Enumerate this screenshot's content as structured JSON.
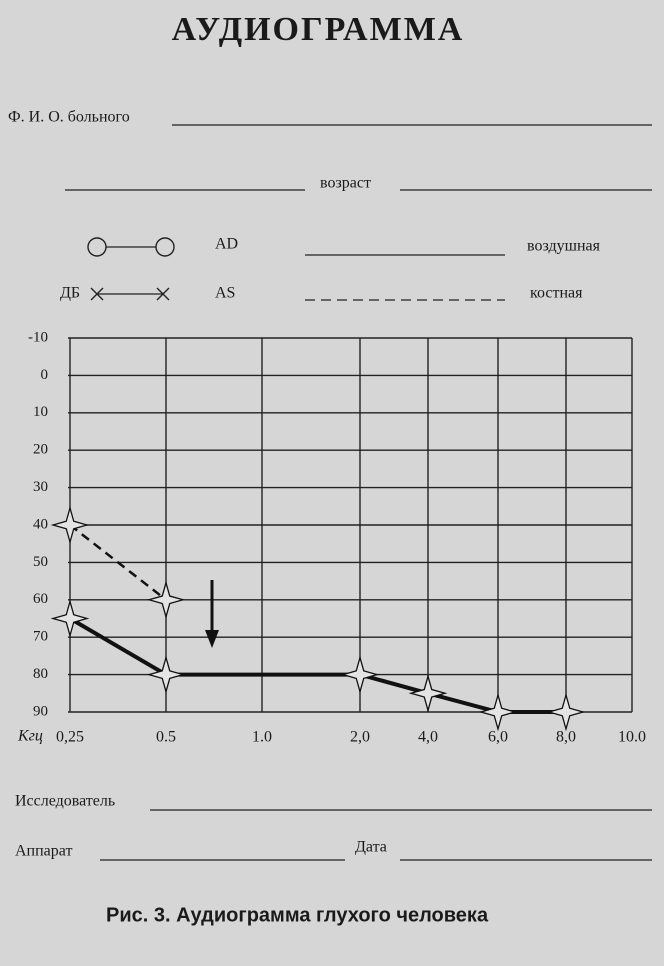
{
  "title": "АУДИОГРАММА",
  "form": {
    "patient": "Ф. И. О. больного",
    "age": "возраст",
    "researcher": "Исследователь",
    "device": "Аппарат",
    "date": "Дата"
  },
  "legend": {
    "right_ear": "AD",
    "left_ear": "AS",
    "unit": "ДБ"
  },
  "chart_data": {
    "type": "line",
    "xlabel": "Кгц",
    "xlim": [
      0.25,
      10
    ],
    "xticks": [
      {
        "value": 0.25,
        "label": "0,25"
      },
      {
        "value": 0.5,
        "label": "0.5"
      },
      {
        "value": 1,
        "label": "1.0"
      },
      {
        "value": 2,
        "label": "2,0"
      },
      {
        "value": 4,
        "label": "4,0"
      },
      {
        "value": 6,
        "label": "6,0"
      },
      {
        "value": 8,
        "label": "8,0"
      },
      {
        "value": 10,
        "label": "10.0"
      }
    ],
    "ylim": [
      -10,
      90
    ],
    "yinverted": true,
    "grid": true,
    "yticks": [
      -10,
      0,
      10,
      20,
      30,
      40,
      50,
      60,
      70,
      80,
      90
    ],
    "series": [
      {
        "name": "воздушная",
        "color": "#111111",
        "dashed": false,
        "x": [
          0.25,
          0.5,
          2,
          4,
          6,
          8
        ],
        "values": [
          65,
          80,
          80,
          85,
          90,
          90
        ]
      },
      {
        "name": "костная",
        "color": "#111111",
        "dashed": true,
        "x": [
          0.25,
          0.5
        ],
        "values": [
          40,
          60
        ]
      }
    ]
  },
  "caption": "Рис. 3. Аудиограмма глухого человека"
}
